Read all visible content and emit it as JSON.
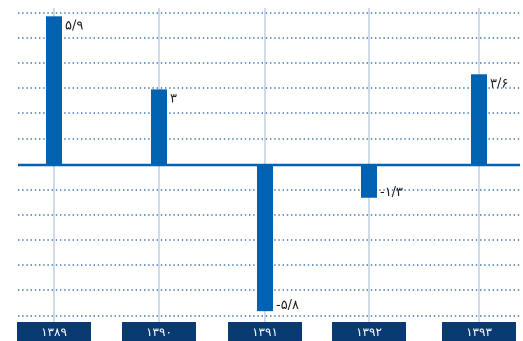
{
  "chart_data": {
    "type": "bar",
    "categories": [
      "۱۳۸۹",
      "۱۳۹۰",
      "۱۳۹۱",
      "۱۳۹۲",
      "۱۳۹۳"
    ],
    "values": [
      5.9,
      3,
      -5.8,
      -1.3,
      3.6
    ],
    "value_labels": [
      "۵/۹",
      "۳",
      "-۵/۸",
      "-۱/۳",
      "۳/۶"
    ],
    "title": "",
    "xlabel": "",
    "ylabel": "",
    "ylim": [
      -6,
      6
    ],
    "grid": "horizontal dotted",
    "legend": "none",
    "colors": {
      "bar": "#0062b0",
      "axis": "#0062b0",
      "grid": "#1b5aa6",
      "tick_box": "#0a3a72",
      "tick_text": "#ffffff"
    }
  }
}
